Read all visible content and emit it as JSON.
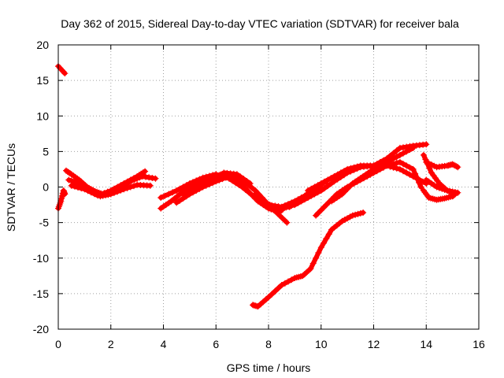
{
  "chart_data": {
    "type": "scatter",
    "title": "Day 362 of 2015, Sidereal Day-to-day VTEC variation (SDTVAR) for receiver bala",
    "xlabel": "GPS time / hours",
    "ylabel": "SDTVAR / TECUs",
    "xlim": [
      0,
      16
    ],
    "ylim": [
      -20,
      20
    ],
    "xticks": [
      "0",
      "2",
      "4",
      "6",
      "8",
      "10",
      "12",
      "14",
      "16"
    ],
    "yticks": [
      "20",
      "15",
      "10",
      "5",
      "0",
      "-5",
      "-10",
      "-15",
      "-20"
    ],
    "grid": true,
    "marker": "+",
    "color": "#ff0000",
    "series": [
      {
        "name": "s1",
        "x": [
          0.0,
          0.25
        ],
        "y": [
          17.0,
          16.0
        ]
      },
      {
        "name": "s2",
        "x": [
          0.0,
          0.1,
          0.2,
          0.25
        ],
        "y": [
          -3.0,
          -2.0,
          -0.5,
          -1.0
        ]
      },
      {
        "name": "s3",
        "x": [
          0.3,
          0.5,
          0.8,
          1.1,
          1.4,
          1.7,
          2.0,
          2.4,
          2.8,
          3.2,
          3.7
        ],
        "y": [
          2.3,
          1.8,
          1.0,
          0.0,
          -0.6,
          -1.0,
          -0.8,
          0.0,
          0.9,
          1.5,
          1.2
        ]
      },
      {
        "name": "s4",
        "x": [
          0.4,
          0.8,
          1.2,
          1.6,
          2.0,
          2.5,
          3.0,
          3.5
        ],
        "y": [
          1.0,
          0.5,
          -0.5,
          -1.3,
          -1.0,
          -0.3,
          0.3,
          0.2
        ]
      },
      {
        "name": "s5",
        "x": [
          0.5,
          1.0,
          1.5,
          2.0,
          2.5,
          3.0,
          3.3
        ],
        "y": [
          0.2,
          -0.3,
          -1.2,
          -0.5,
          0.5,
          1.5,
          2.2
        ]
      },
      {
        "name": "s6",
        "x": [
          3.9,
          4.3,
          4.8,
          5.3,
          5.8,
          6.3,
          6.8,
          7.2,
          7.6,
          8.0,
          8.4
        ],
        "y": [
          -3.0,
          -2.0,
          -0.5,
          0.5,
          1.2,
          1.5,
          1.0,
          -0.5,
          -2.0,
          -3.0,
          -3.5
        ]
      },
      {
        "name": "s7",
        "x": [
          3.9,
          4.5,
          5.0,
          5.5,
          6.0,
          6.5,
          7.0,
          7.5,
          8.0,
          8.5
        ],
        "y": [
          -1.5,
          -0.5,
          0.5,
          1.3,
          1.8,
          1.2,
          0.0,
          -1.5,
          -2.8,
          -3.3
        ]
      },
      {
        "name": "s8",
        "x": [
          4.5,
          5.0,
          5.5,
          6.0,
          6.5,
          7.0,
          7.5,
          8.0,
          8.7
        ],
        "y": [
          -2.2,
          -1.0,
          0.0,
          0.8,
          1.5,
          1.0,
          -0.5,
          -2.5,
          -5.0
        ]
      },
      {
        "name": "s9",
        "x": [
          4.8,
          5.3,
          5.8,
          6.3,
          6.8,
          7.3
        ],
        "y": [
          -1.2,
          0.0,
          1.0,
          2.0,
          1.8,
          0.5
        ]
      },
      {
        "name": "s10",
        "x": [
          7.5,
          8.0,
          8.5,
          9.0,
          9.5,
          10.0
        ],
        "y": [
          -1.0,
          -2.5,
          -2.8,
          -2.0,
          -1.0,
          0.0
        ]
      },
      {
        "name": "s11",
        "x": [
          7.8,
          8.3,
          8.8,
          9.3,
          9.8,
          10.2
        ],
        "y": [
          -2.0,
          -3.0,
          -2.8,
          -1.5,
          0.0,
          0.8
        ]
      },
      {
        "name": "s12",
        "x": [
          8.5,
          9.0,
          9.5,
          10.0,
          10.5,
          11.0,
          11.5,
          12.0,
          12.5,
          13.0,
          13.5
        ],
        "y": [
          -3.0,
          -2.5,
          -1.5,
          -0.5,
          0.8,
          2.0,
          2.8,
          3.0,
          3.5,
          4.5,
          5.5
        ]
      },
      {
        "name": "s13",
        "x": [
          9.5,
          10.0,
          10.5,
          11.0,
          11.5,
          12.0,
          12.5,
          13.0,
          13.5,
          14.0
        ],
        "y": [
          -0.5,
          0.5,
          1.5,
          2.5,
          3.0,
          3.0,
          4.0,
          5.5,
          5.8,
          6.0
        ]
      },
      {
        "name": "s14",
        "x": [
          9.8,
          10.2,
          10.6,
          11.0,
          11.5,
          12.0,
          12.5,
          13.0,
          13.5,
          13.8
        ],
        "y": [
          -4.0,
          -2.5,
          -1.0,
          0.0,
          1.0,
          2.0,
          3.0,
          3.5,
          2.5,
          0.0
        ]
      },
      {
        "name": "s15",
        "x": [
          10.4,
          10.8,
          11.2,
          11.6,
          12.0,
          12.5,
          13.0,
          13.5,
          14.0
        ],
        "y": [
          -2.0,
          -1.0,
          0.5,
          1.5,
          2.5,
          3.0,
          2.5,
          1.5,
          0.5
        ]
      },
      {
        "name": "s16",
        "x": [
          7.4,
          7.6,
          8.0,
          8.5,
          9.0,
          9.3,
          9.6,
          10.0,
          10.4,
          10.8,
          11.2,
          11.6
        ],
        "y": [
          -16.6,
          -16.8,
          -15.5,
          -13.8,
          -12.8,
          -12.5,
          -11.5,
          -8.5,
          -6.0,
          -4.8,
          -4.0,
          -3.6
        ]
      },
      {
        "name": "s17",
        "x": [
          13.9,
          14.2,
          14.5,
          14.8,
          15.1
        ],
        "y": [
          4.5,
          2.0,
          0.5,
          -0.5,
          -1.0
        ]
      },
      {
        "name": "s18",
        "x": [
          13.9,
          14.1,
          14.4,
          14.7,
          15.0,
          15.1
        ],
        "y": [
          -0.5,
          -1.5,
          -1.8,
          -1.6,
          -1.3,
          -1.0
        ]
      },
      {
        "name": "s19",
        "x": [
          14.0,
          14.4,
          14.8,
          15.0,
          15.2
        ],
        "y": [
          3.5,
          2.8,
          3.0,
          3.2,
          2.8
        ]
      },
      {
        "name": "s20",
        "x": [
          14.0,
          14.4,
          14.8,
          15.2
        ],
        "y": [
          1.0,
          0.0,
          -0.5,
          -0.8
        ]
      }
    ]
  }
}
